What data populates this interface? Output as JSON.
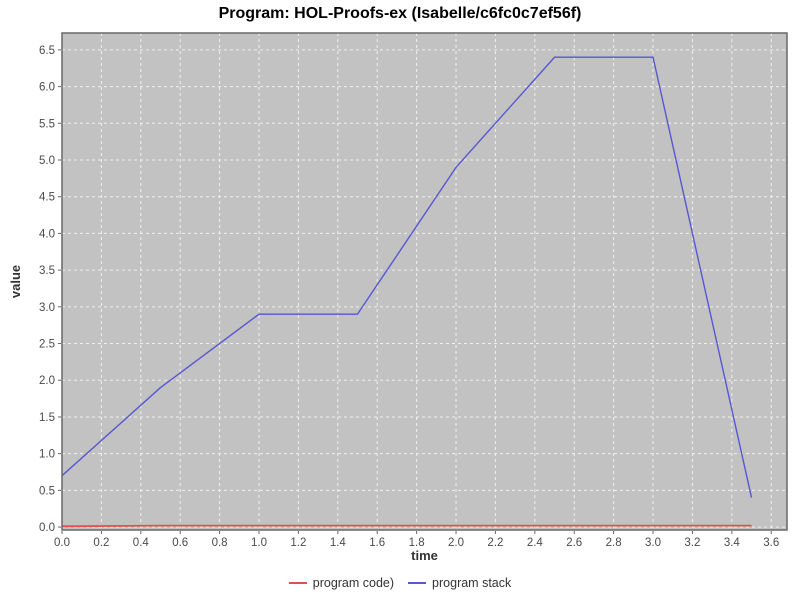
{
  "title": "Program: HOL-Proofs-ex (Isabelle/c6fc0c7ef56f)",
  "chart_data": {
    "type": "line",
    "title": "Program: HOL-Proofs-ex (Isabelle/c6fc0c7ef56f)",
    "xlabel": "time",
    "ylabel": "value",
    "xlim": [
      0.0,
      3.68
    ],
    "ylim": [
      -0.04,
      6.73
    ],
    "x_ticks": [
      0.0,
      0.2,
      0.4,
      0.6,
      0.8,
      1.0,
      1.2,
      1.4,
      1.6,
      1.8,
      2.0,
      2.2,
      2.4,
      2.6,
      2.8,
      3.0,
      3.2,
      3.4,
      3.6
    ],
    "y_ticks": [
      0.0,
      0.5,
      1.0,
      1.5,
      2.0,
      2.5,
      3.0,
      3.5,
      4.0,
      4.5,
      5.0,
      5.5,
      6.0,
      6.5
    ],
    "grid": true,
    "legend_position": "bottom",
    "x": [
      0.0,
      0.5,
      1.0,
      1.5,
      2.0,
      2.5,
      3.0,
      3.5
    ],
    "series": [
      {
        "name": "program code)",
        "color": "#e1504c",
        "width": 1.8,
        "values": [
          0.01,
          0.02,
          0.02,
          0.02,
          0.02,
          0.02,
          0.02,
          0.02
        ]
      },
      {
        "name": "program stack",
        "color": "#5757d2",
        "width": 1.4,
        "values": [
          0.7,
          1.9,
          2.9,
          2.9,
          4.9,
          6.4,
          6.4,
          0.4
        ]
      }
    ],
    "colors": {
      "page_bg": "#ffffff",
      "plot_bg": "#c2c2c2",
      "grid": "#f0f0f0",
      "border": "#686868",
      "tick": "#666666",
      "tick_label": "#4a4a4a",
      "axis_label": "#333333",
      "title": "#000000",
      "legend_text": "#333333"
    }
  }
}
